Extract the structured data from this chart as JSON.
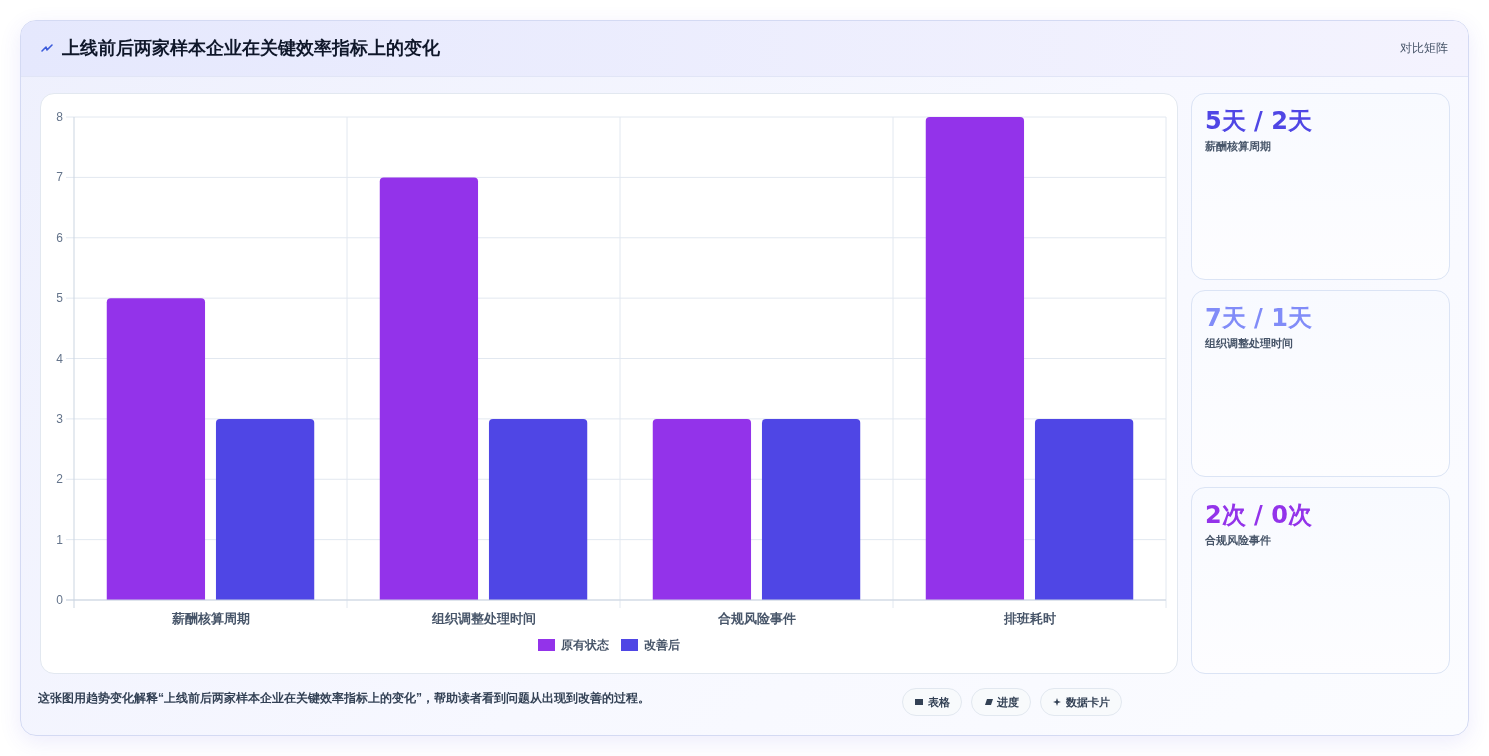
{
  "chart_data": [
    {
      "type": "bar",
      "title": "上线前后两家样本企业在关键效率指标上的变化",
      "categories": [
        "薪酬核算周期",
        "组织调整处理时间",
        "合规风险事件",
        "排班耗时"
      ],
      "series": [
        {
          "name": "原有状态",
          "color": "#9333ea",
          "values": [
            5,
            7,
            3,
            8
          ]
        },
        {
          "name": "改善后",
          "color": "#4f46e5",
          "values": [
            3,
            3,
            3,
            3
          ]
        }
      ],
      "ylim": [
        0,
        8
      ],
      "yticks": [
        0,
        1,
        2,
        3,
        4,
        5,
        6,
        7,
        8
      ],
      "grid": true,
      "legend": "bottom",
      "annotations": [
        "对比矩阵",
        "这张图用趋势变化解释“上线前后两家样本企业在关键效率指标上的变化”，帮助读者看到问题从出现到改善的过程。",
        "表格",
        "进度",
        "数据卡片"
      ]
    },
    {
      "type": "other",
      "title": "5天 / 2天",
      "subtitle": "薪酬核算周期"
    },
    {
      "type": "other",
      "title": "7天 / 1天",
      "subtitle": "组织调整处理时间"
    },
    {
      "type": "other",
      "title": "2次 / 0次",
      "subtitle": "合规风险事件"
    }
  ]
}
